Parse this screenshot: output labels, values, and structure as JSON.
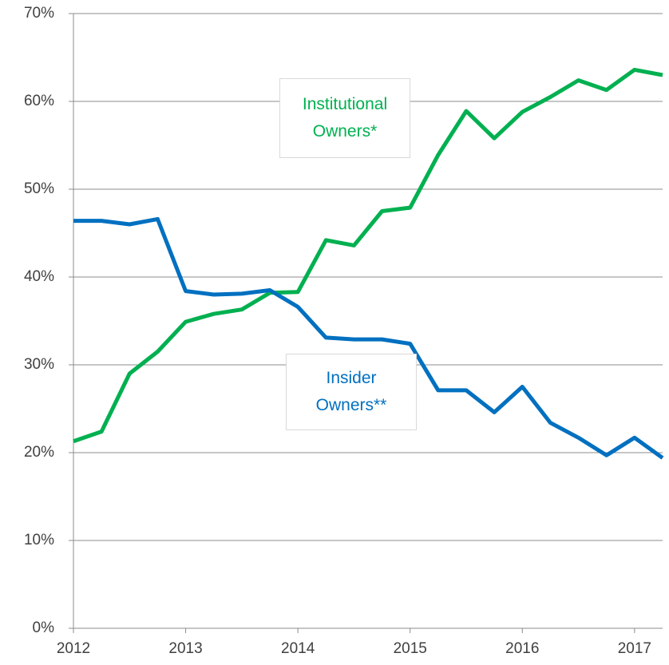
{
  "chart_data": {
    "type": "line",
    "x": [
      2012,
      2012.25,
      2012.5,
      2012.75,
      2013,
      2013.25,
      2013.5,
      2013.75,
      2014,
      2014.25,
      2014.5,
      2014.75,
      2015,
      2015.25,
      2015.5,
      2015.75,
      2016,
      2016.25,
      2016.5,
      2016.75,
      2017,
      2017.25
    ],
    "series": [
      {
        "name": "Institutional Owners*",
        "color": "#00b050",
        "values": [
          21.3,
          22.4,
          29.0,
          31.5,
          34.9,
          35.8,
          36.3,
          38.2,
          38.3,
          44.2,
          43.6,
          47.5,
          47.9,
          53.9,
          58.9,
          55.8,
          58.8,
          60.5,
          62.4,
          61.3,
          63.6,
          63.0
        ]
      },
      {
        "name": "Insider Owners**",
        "color": "#0070c0",
        "values": [
          46.4,
          46.4,
          46.0,
          46.6,
          38.4,
          38.0,
          38.1,
          38.5,
          36.6,
          33.1,
          32.9,
          32.9,
          32.4,
          27.1,
          27.1,
          24.6,
          27.5,
          23.4,
          21.7,
          19.7,
          21.7,
          19.4
        ]
      }
    ],
    "xlim": [
      2012,
      2017.25
    ],
    "xticks": [
      2012,
      2013,
      2014,
      2015,
      2016,
      2017
    ],
    "ylim": [
      0,
      70
    ],
    "yticks": [
      {
        "value": 0,
        "label": "0%"
      },
      {
        "value": 10,
        "label": "10%"
      },
      {
        "value": 20,
        "label": "20%"
      },
      {
        "value": 30,
        "label": "30%"
      },
      {
        "value": 40,
        "label": "40%"
      },
      {
        "value": 50,
        "label": "50%"
      },
      {
        "value": 60,
        "label": "60%"
      },
      {
        "value": 70,
        "label": "70%"
      }
    ],
    "grid": true
  }
}
